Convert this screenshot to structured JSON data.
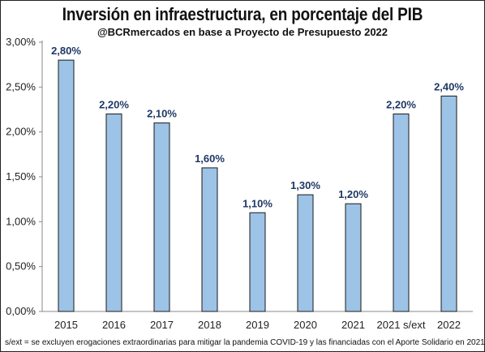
{
  "chart_data": {
    "type": "bar",
    "title": "Inversión en infraestructura, en porcentaje del PIB",
    "subtitle": "@BCRmercados en base a Proyecto de Presupuesto 2022",
    "categories": [
      "2015",
      "2016",
      "2017",
      "2018",
      "2019",
      "2020",
      "2021",
      "2021 s/ext",
      "2022"
    ],
    "values": [
      2.8,
      2.2,
      2.1,
      1.6,
      1.1,
      1.3,
      1.2,
      2.2,
      2.4
    ],
    "value_labels": [
      "2,80%",
      "2,20%",
      "2,10%",
      "1,60%",
      "1,10%",
      "1,30%",
      "1,20%",
      "2,20%",
      "2,40%"
    ],
    "ylim": [
      0,
      3
    ],
    "yticks": [
      0,
      0.5,
      1,
      1.5,
      2,
      2.5,
      3
    ],
    "ytick_labels": [
      "0,00%",
      "0,50%",
      "1,00%",
      "1,50%",
      "2,00%",
      "2,50%",
      "3,00%"
    ],
    "xlabel": "",
    "ylabel": "",
    "grid": false,
    "legend": "none",
    "bar_color": "#9dc3e6",
    "bar_edge_color": "#1a1a1a",
    "label_color": "#1f3864",
    "footnote": "s/ext = se excluyen erogaciones extraordinarias para mitigar la pandemia COVID-19 y las financiadas con el Aporte Solidario en 2021"
  }
}
